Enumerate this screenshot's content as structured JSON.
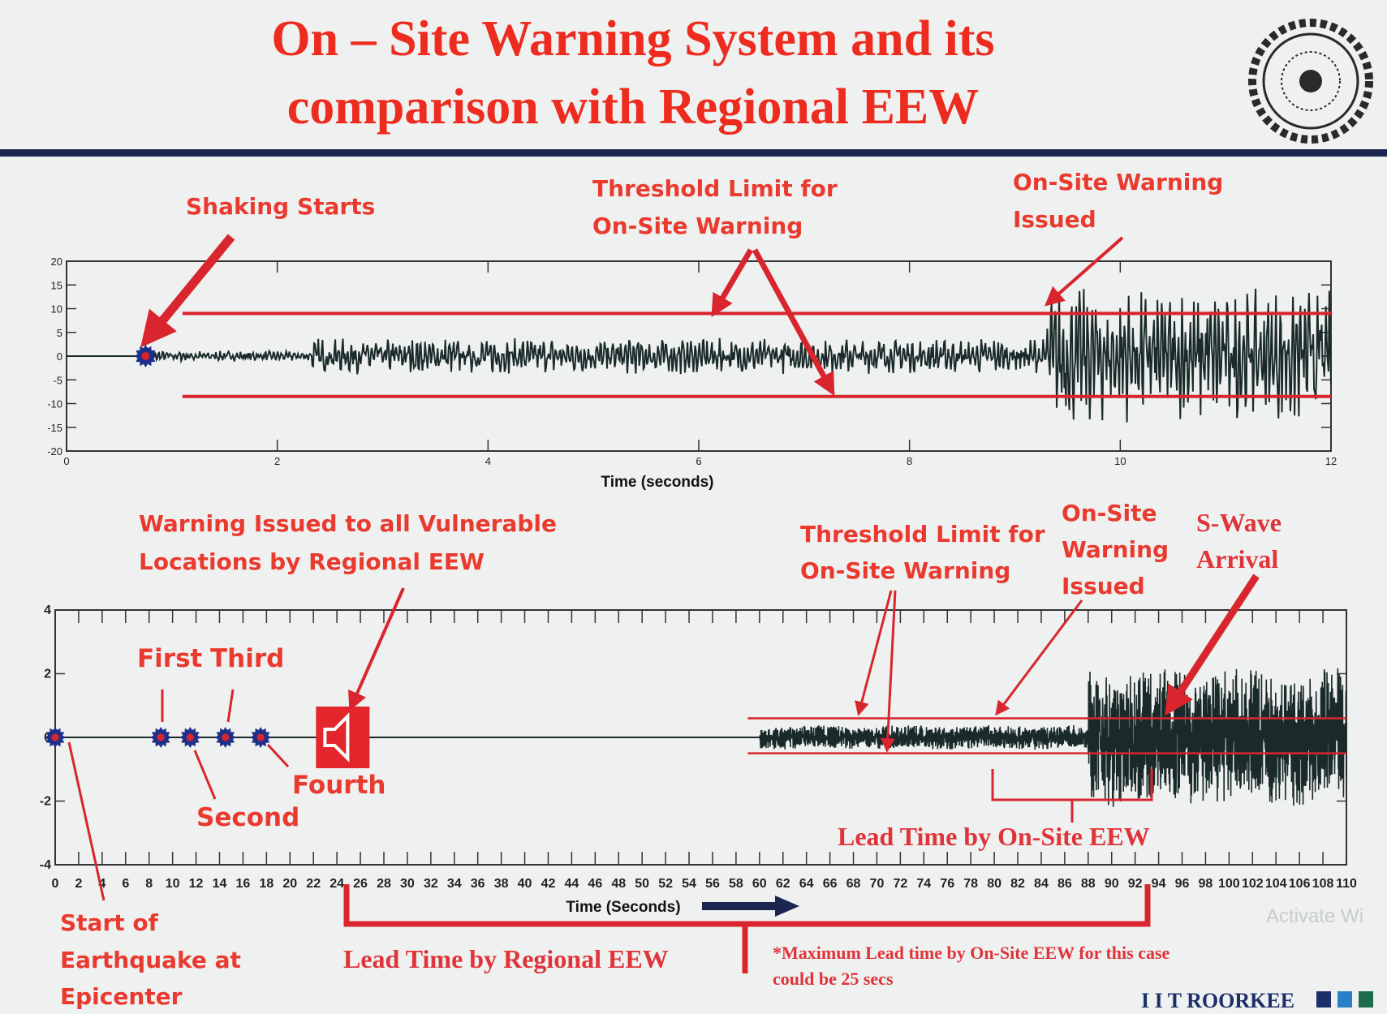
{
  "slide": {
    "title_line1": "On – Site Warning System and its",
    "title_line2": "comparison with Regional EEW",
    "brand": "I I T ROORKEE",
    "watermark": "Activate Wi",
    "colors": {
      "title": "#ee2b1f",
      "annotation": "#ea3a30",
      "rule": "#1c2550",
      "waveform": "#1a2a2a",
      "marker": "#1e2f8a",
      "threshold": "#d9262e"
    }
  },
  "annotations_top": {
    "shaking_starts": "Shaking Starts",
    "threshold_1": "Threshold Limit for",
    "threshold_2": "On-Site Warning",
    "warning_1": "On-Site Warning",
    "warning_2": "Issued"
  },
  "annotations_bottom": {
    "regional_1": "Warning Issued to all Vulnerable",
    "regional_2": "Locations by Regional EEW",
    "threshold_1": "Threshold Limit for",
    "threshold_2": "On-Site Warning",
    "onsite_1": "On-Site",
    "onsite_2": "Warning",
    "onsite_3": "Issued",
    "swave_1": "S-Wave",
    "swave_2": "Arrival",
    "first": "First",
    "second": "Second",
    "third": "Third",
    "fourth": "Fourth",
    "lead_onsite": "Lead Time by On-Site EEW",
    "start_1": "Start of",
    "start_2": "Earthquake at",
    "start_3": "Epicenter",
    "lead_regional": "Lead Time by Regional EEW",
    "footnote_1": "*Maximum Lead time by On-Site EEW for this case",
    "footnote_2": "could be 25 secs"
  },
  "chart_data": [
    {
      "type": "line",
      "title": "",
      "xlabel": "Time (seconds)",
      "ylabel": "",
      "xlim": [
        0,
        12
      ],
      "ylim": [
        -20,
        20
      ],
      "xticks": [
        0,
        2,
        4,
        6,
        8,
        10,
        12
      ],
      "yticks": [
        20,
        15,
        10,
        5,
        0,
        -5,
        -10,
        -15,
        -20
      ],
      "grid": false,
      "shaking_start_time": 0.75,
      "threshold_upper": 9,
      "threshold_lower": -8.5,
      "threshold_start_time": 1.1,
      "warning_issued_time": 9.3,
      "series_description_amplitude": [
        {
          "from": 0.75,
          "to": 2.3,
          "amp": 1
        },
        {
          "from": 2.3,
          "to": 9.3,
          "amp": 3.5
        },
        {
          "from": 9.3,
          "to": 12,
          "amp": 13
        }
      ]
    },
    {
      "type": "line",
      "title": "",
      "xlabel": "Time (Seconds)",
      "ylabel": "",
      "xlim": [
        0,
        110
      ],
      "ylim": [
        -4,
        4
      ],
      "xticks": [
        0,
        2,
        4,
        6,
        8,
        10,
        12,
        14,
        16,
        18,
        20,
        22,
        24,
        26,
        28,
        30,
        32,
        34,
        36,
        38,
        40,
        42,
        44,
        46,
        48,
        50,
        52,
        54,
        56,
        58,
        60,
        62,
        64,
        66,
        68,
        70,
        72,
        74,
        76,
        78,
        80,
        82,
        84,
        86,
        88,
        90,
        92,
        94,
        96,
        98,
        100,
        102,
        104,
        106,
        108,
        110
      ],
      "yticks": [
        4,
        2,
        0,
        -2,
        -4
      ],
      "grid": false,
      "station_markers": [
        0,
        9,
        11.5,
        14.5,
        17.5
      ],
      "regional_warning_time": 24.5,
      "threshold_upper": 0.6,
      "threshold_lower": -0.5,
      "threshold_start_time": 59,
      "onsite_warning_time": 80,
      "swave_arrival_time": 94,
      "lead_time_regional_range": [
        24.5,
        93
      ],
      "lead_time_onsite_range": [
        80,
        93
      ],
      "series_description_amplitude": [
        {
          "from": 60,
          "to": 88,
          "amp": 0.35
        },
        {
          "from": 88,
          "to": 110,
          "amp": 2
        }
      ]
    }
  ]
}
